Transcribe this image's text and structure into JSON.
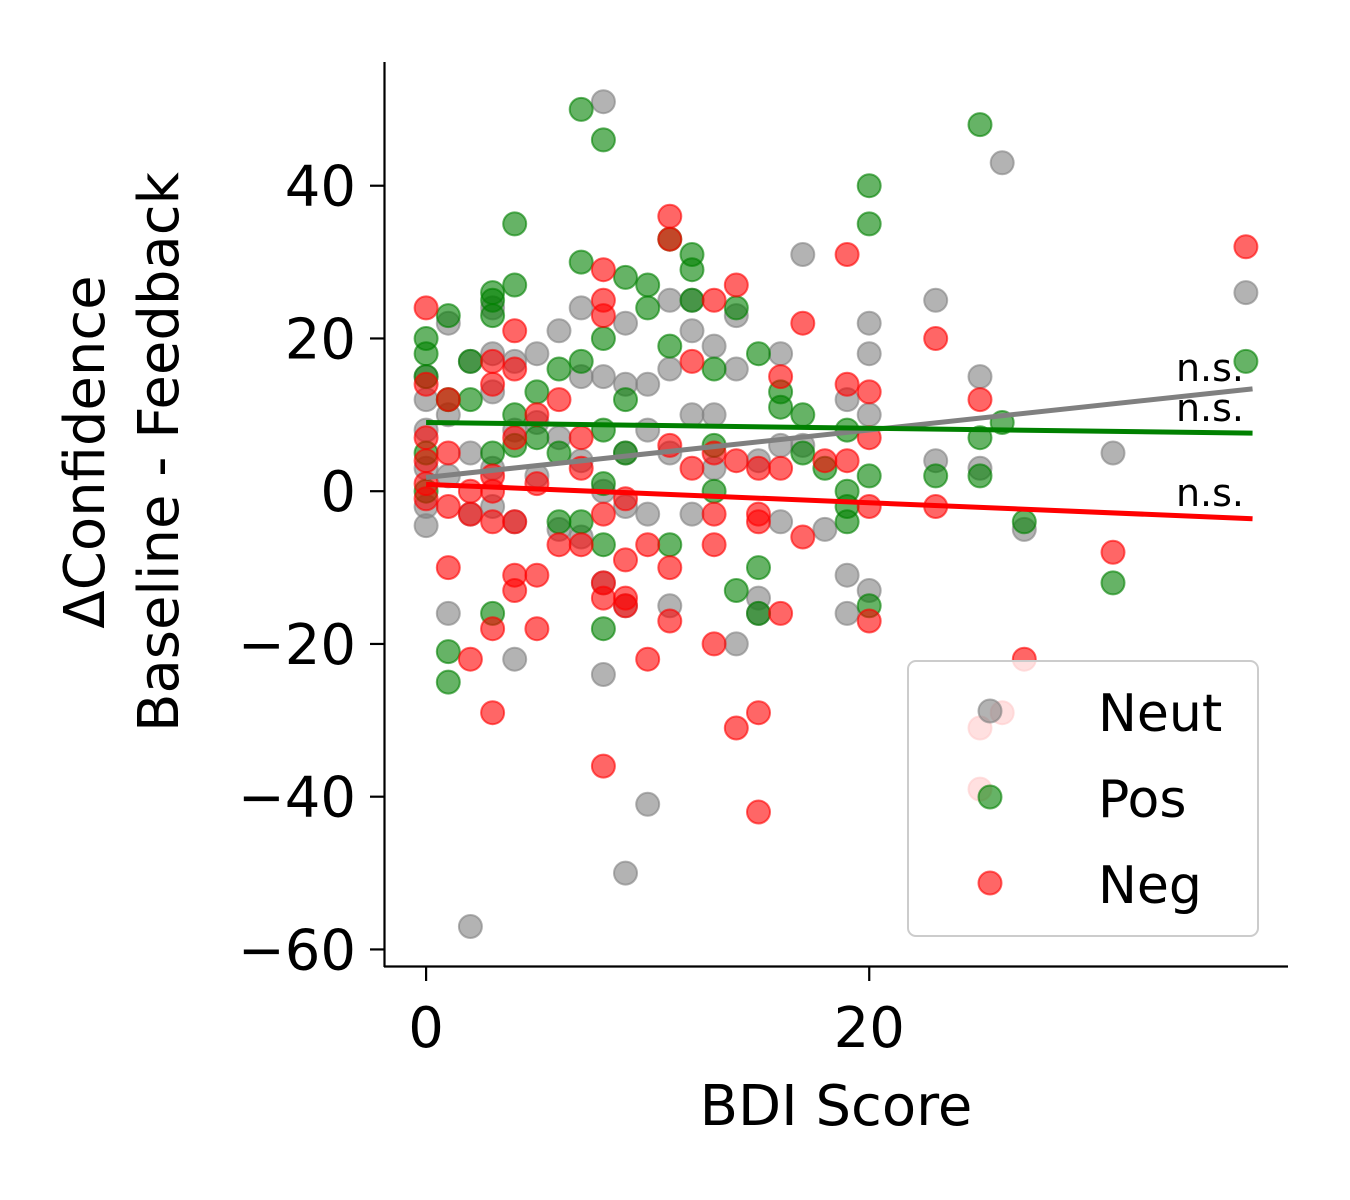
{
  "chart_data": {
    "type": "scatter",
    "title": "",
    "xlabel": "BDI Score",
    "ylabel_lines": [
      "ΔConfidence",
      "Baseline - Feedback"
    ],
    "xlim": [
      -1.9,
      38.9
    ],
    "ylim": [
      -62.3,
      56.2
    ],
    "xticks": [
      0,
      20
    ],
    "xtick_labels": [
      "0",
      "20"
    ],
    "yticks": [
      40,
      20,
      0,
      -20,
      -40,
      -60
    ],
    "ytick_labels": [
      "40",
      "20",
      "0",
      "−20",
      "−40",
      "−60"
    ],
    "grid": false,
    "legend_position": "lower right",
    "series": [
      {
        "name": "Neut",
        "color": "#808080",
        "fit": {
          "x": [
            0,
            37.3
          ],
          "y": [
            1.8,
            13.4
          ]
        },
        "fit_label": "n.s.",
        "points": [
          [
            0,
            15
          ],
          [
            0,
            12
          ],
          [
            0,
            8
          ],
          [
            0,
            3
          ],
          [
            0,
            -2
          ],
          [
            0,
            -4.5
          ],
          [
            1,
            22
          ],
          [
            1,
            10
          ],
          [
            1,
            2
          ],
          [
            1,
            -16
          ],
          [
            2,
            17
          ],
          [
            2,
            5
          ],
          [
            2,
            -3
          ],
          [
            2,
            -57
          ],
          [
            3,
            24
          ],
          [
            3,
            18
          ],
          [
            3,
            13
          ],
          [
            3,
            3
          ],
          [
            3,
            -2
          ],
          [
            4,
            17
          ],
          [
            4,
            8
          ],
          [
            4,
            -4
          ],
          [
            4,
            -22
          ],
          [
            5,
            18
          ],
          [
            5,
            9
          ],
          [
            5,
            2
          ],
          [
            6,
            21
          ],
          [
            6,
            7
          ],
          [
            6,
            -5
          ],
          [
            7,
            24
          ],
          [
            7,
            15
          ],
          [
            7,
            4
          ],
          [
            7,
            -6
          ],
          [
            8,
            51
          ],
          [
            8,
            15
          ],
          [
            8,
            0
          ],
          [
            8,
            -12
          ],
          [
            8,
            -24
          ],
          [
            9,
            22
          ],
          [
            9,
            14
          ],
          [
            9,
            5
          ],
          [
            9,
            -2
          ],
          [
            9,
            -15
          ],
          [
            9,
            -50
          ],
          [
            10,
            14
          ],
          [
            10,
            8
          ],
          [
            10,
            -3
          ],
          [
            10,
            -41
          ],
          [
            11,
            25
          ],
          [
            11,
            16
          ],
          [
            11,
            5
          ],
          [
            11,
            -15
          ],
          [
            12,
            25
          ],
          [
            12,
            21
          ],
          [
            12,
            10
          ],
          [
            12,
            -3
          ],
          [
            13,
            19
          ],
          [
            13,
            10
          ],
          [
            13,
            3
          ],
          [
            14,
            23
          ],
          [
            14,
            16
          ],
          [
            14,
            -20
          ],
          [
            15,
            4
          ],
          [
            15,
            -14
          ],
          [
            15,
            -16
          ],
          [
            16,
            18
          ],
          [
            16,
            6
          ],
          [
            16,
            -4
          ],
          [
            17,
            31
          ],
          [
            17,
            6
          ],
          [
            18,
            -5
          ],
          [
            19,
            12
          ],
          [
            19,
            -11
          ],
          [
            19,
            -16
          ],
          [
            20,
            22
          ],
          [
            20,
            18
          ],
          [
            20,
            10
          ],
          [
            20,
            -13
          ],
          [
            23,
            25
          ],
          [
            23,
            4
          ],
          [
            25,
            15
          ],
          [
            25,
            3
          ],
          [
            26,
            43
          ],
          [
            27,
            -5
          ],
          [
            31,
            5
          ],
          [
            37,
            26
          ]
        ]
      },
      {
        "name": "Pos",
        "color": "#008000",
        "fit": {
          "x": [
            0,
            37.3
          ],
          "y": [
            9.0,
            7.6
          ]
        },
        "fit_label": "n.s.",
        "points": [
          [
            0,
            20
          ],
          [
            0,
            18
          ],
          [
            0,
            15
          ],
          [
            0,
            5
          ],
          [
            0,
            0
          ],
          [
            1,
            23
          ],
          [
            1,
            12
          ],
          [
            1,
            -21
          ],
          [
            1,
            -25
          ],
          [
            2,
            17
          ],
          [
            2,
            12
          ],
          [
            3,
            26
          ],
          [
            3,
            25
          ],
          [
            3,
            23
          ],
          [
            3,
            5
          ],
          [
            3,
            -16
          ],
          [
            4,
            35
          ],
          [
            4,
            27
          ],
          [
            4,
            10
          ],
          [
            4,
            6
          ],
          [
            5,
            13
          ],
          [
            5,
            7
          ],
          [
            6,
            16
          ],
          [
            6,
            5
          ],
          [
            6,
            -4
          ],
          [
            7,
            50
          ],
          [
            7,
            30
          ],
          [
            7,
            17
          ],
          [
            7,
            -4
          ],
          [
            8,
            46
          ],
          [
            8,
            20
          ],
          [
            8,
            8
          ],
          [
            8,
            1
          ],
          [
            8,
            -7
          ],
          [
            8,
            -18
          ],
          [
            9,
            28
          ],
          [
            9,
            12
          ],
          [
            9,
            5
          ],
          [
            10,
            27
          ],
          [
            10,
            24
          ],
          [
            11,
            33
          ],
          [
            11,
            19
          ],
          [
            11,
            -7
          ],
          [
            12,
            31
          ],
          [
            12,
            29
          ],
          [
            12,
            25
          ],
          [
            13,
            16
          ],
          [
            13,
            6
          ],
          [
            13,
            0
          ],
          [
            14,
            24
          ],
          [
            14,
            -13
          ],
          [
            15,
            18
          ],
          [
            15,
            -10
          ],
          [
            15,
            -16
          ],
          [
            16,
            13
          ],
          [
            16,
            11
          ],
          [
            17,
            10
          ],
          [
            17,
            5
          ],
          [
            18,
            3
          ],
          [
            19,
            8
          ],
          [
            19,
            0
          ],
          [
            19,
            -2
          ],
          [
            19,
            -4
          ],
          [
            20,
            40
          ],
          [
            20,
            35
          ],
          [
            20,
            2
          ],
          [
            20,
            -15
          ],
          [
            23,
            2
          ],
          [
            25,
            48
          ],
          [
            25,
            7
          ],
          [
            25,
            2
          ],
          [
            26,
            9
          ],
          [
            27,
            -4
          ],
          [
            31,
            -12
          ],
          [
            37,
            17
          ]
        ]
      },
      {
        "name": "Neg",
        "color": "#ff0000",
        "fit": {
          "x": [
            0,
            37.3
          ],
          "y": [
            0.9,
            -3.6
          ]
        },
        "fit_label": "n.s.",
        "points": [
          [
            0,
            24
          ],
          [
            0,
            14
          ],
          [
            0,
            7
          ],
          [
            0,
            4
          ],
          [
            0,
            1
          ],
          [
            0,
            -1
          ],
          [
            1,
            12
          ],
          [
            1,
            5
          ],
          [
            1,
            -2
          ],
          [
            1,
            -10
          ],
          [
            2,
            0
          ],
          [
            2,
            -3
          ],
          [
            2,
            -22
          ],
          [
            3,
            17
          ],
          [
            3,
            14
          ],
          [
            3,
            2
          ],
          [
            3,
            0
          ],
          [
            3,
            -4
          ],
          [
            3,
            -18
          ],
          [
            3,
            -29
          ],
          [
            4,
            21
          ],
          [
            4,
            16
          ],
          [
            4,
            7
          ],
          [
            4,
            -4
          ],
          [
            4,
            -11
          ],
          [
            4,
            -13
          ],
          [
            5,
            10
          ],
          [
            5,
            1
          ],
          [
            5,
            -11
          ],
          [
            5,
            -18
          ],
          [
            6,
            12
          ],
          [
            6,
            -7
          ],
          [
            7,
            7
          ],
          [
            7,
            3
          ],
          [
            7,
            -7
          ],
          [
            8,
            29
          ],
          [
            8,
            25
          ],
          [
            8,
            23
          ],
          [
            8,
            -3
          ],
          [
            8,
            -12
          ],
          [
            8,
            -14
          ],
          [
            8,
            -36
          ],
          [
            9,
            -1
          ],
          [
            9,
            -9
          ],
          [
            9,
            -14
          ],
          [
            9,
            -15
          ],
          [
            10,
            -7
          ],
          [
            10,
            -22
          ],
          [
            11,
            36
          ],
          [
            11,
            33
          ],
          [
            11,
            6
          ],
          [
            11,
            -10
          ],
          [
            11,
            -17
          ],
          [
            12,
            17
          ],
          [
            12,
            3
          ],
          [
            13,
            25
          ],
          [
            13,
            5
          ],
          [
            13,
            -3
          ],
          [
            13,
            -7
          ],
          [
            13,
            -20
          ],
          [
            14,
            27
          ],
          [
            14,
            4
          ],
          [
            14,
            -31
          ],
          [
            15,
            3
          ],
          [
            15,
            -3
          ],
          [
            15,
            -4
          ],
          [
            15,
            -29
          ],
          [
            15,
            -42
          ],
          [
            16,
            15
          ],
          [
            16,
            3
          ],
          [
            16,
            -16
          ],
          [
            17,
            22
          ],
          [
            17,
            -6
          ],
          [
            18,
            4
          ],
          [
            19,
            31
          ],
          [
            19,
            14
          ],
          [
            19,
            4
          ],
          [
            20,
            13
          ],
          [
            20,
            7
          ],
          [
            20,
            -2
          ],
          [
            20,
            -17
          ],
          [
            23,
            20
          ],
          [
            23,
            -2
          ],
          [
            25,
            12
          ],
          [
            25,
            -31
          ],
          [
            25,
            -39
          ],
          [
            26,
            -29
          ],
          [
            27,
            -22
          ],
          [
            31,
            -8
          ],
          [
            37,
            32
          ]
        ]
      }
    ]
  }
}
